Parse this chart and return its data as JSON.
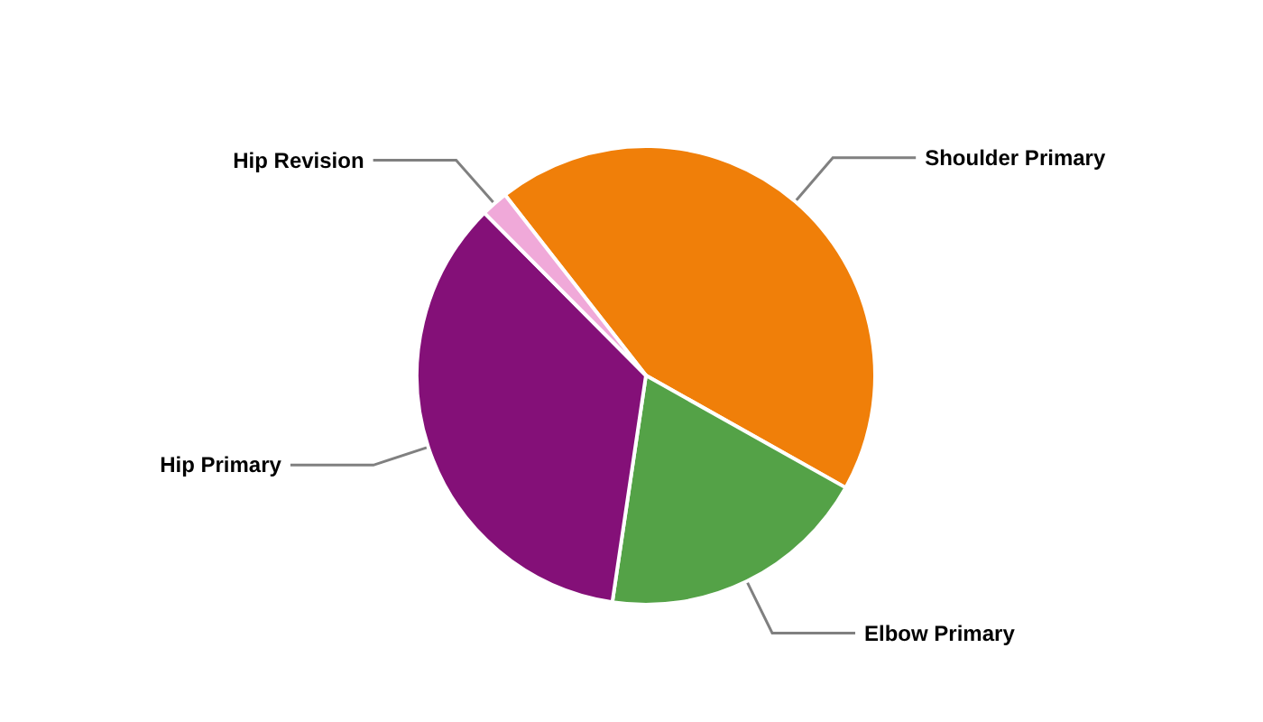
{
  "chart_data": {
    "type": "pie",
    "categories": [
      "Shoulder Primary",
      "Elbow Primary",
      "Hip Primary",
      "Hip Revision"
    ],
    "values": [
      43.7,
      19.2,
      35.2,
      1.9
    ],
    "colors": [
      "#f07f09",
      "#54a247",
      "#841078",
      "#f0a9d9"
    ]
  }
}
